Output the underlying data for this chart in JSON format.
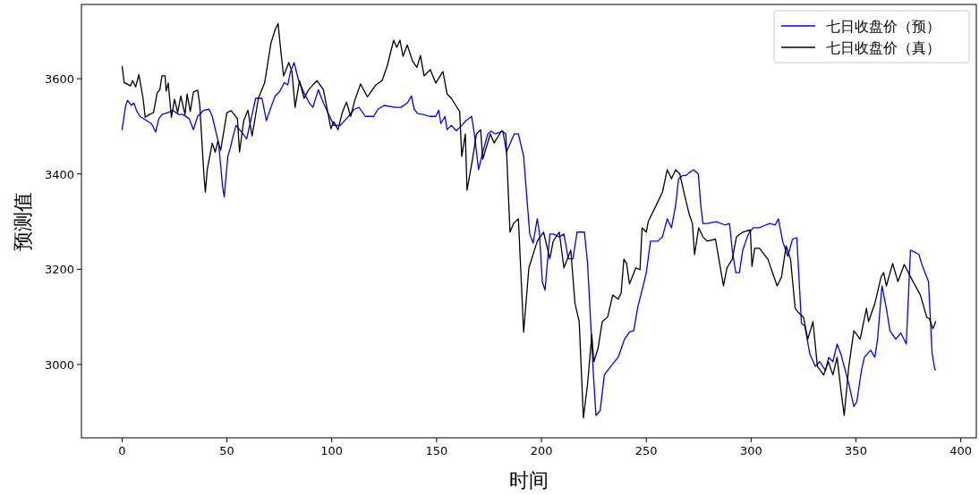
{
  "chart_data": {
    "type": "line",
    "xlabel": "时间",
    "ylabel": "预测值",
    "xlim": [
      -19.4,
      407.4
    ],
    "ylim": [
      2846,
      3756
    ],
    "xticks": [
      0,
      50,
      100,
      150,
      200,
      250,
      300,
      350,
      400
    ],
    "yticks": [
      3000,
      3200,
      3400,
      3600
    ],
    "grid": false,
    "legend": "top right",
    "series": [
      {
        "name": "七日收盘价（预）",
        "color": "#0000ff",
        "x": [
          0,
          1.7,
          2.6,
          4.3,
          5.6,
          7,
          8.5,
          11,
          14,
          16,
          17.5,
          19,
          22,
          24,
          27,
          29,
          32,
          34,
          36,
          39,
          41.5,
          43,
          46,
          48,
          48.7,
          50.4,
          51.7,
          52.6,
          54.3,
          57,
          59.4,
          63.7,
          66.7,
          68.8,
          71,
          73,
          75,
          77.4,
          79,
          80.3,
          82,
          84.2,
          86.8,
          89.3,
          91,
          93.6,
          96,
          101,
          104,
          108,
          110.7,
          113,
          116,
          120,
          122,
          125,
          130,
          133,
          136,
          138,
          139.3,
          141,
          143.6,
          146.6,
          149.6,
          151,
          152,
          154,
          155,
          157,
          159.4,
          162,
          164,
          166.7,
          168,
          170,
          172,
          174.4,
          176,
          178,
          181.6,
          183.3,
          187,
          189,
          191.5,
          194.4,
          196,
          198,
          199,
          200.4,
          201.7,
          204,
          205.6,
          208.5,
          210.7,
          212.8,
          215,
          217,
          220.5,
          222,
          224.8,
          226,
          228,
          230,
          233,
          236.6,
          239.6,
          242,
          244,
          246,
          248,
          250,
          252,
          255.5,
          257.7,
          260,
          262,
          264,
          265.4,
          267.5,
          269,
          270.5,
          272.6,
          274.8,
          276,
          277,
          279,
          283.3,
          287.6,
          289.7,
          291,
          292.7,
          294.4,
          296,
          298.7,
          301,
          304,
          307,
          309,
          311.5,
          313,
          315,
          317.5,
          319.7,
          321.8,
          324,
          325.6,
          328,
          330.6,
          332.7,
          335.5,
          337,
          339,
          341,
          343,
          346.6,
          349,
          350.4,
          352.6,
          354,
          357,
          359,
          360.3,
          362.4,
          364.5,
          366.2,
          369,
          371.4,
          374,
          376,
          378,
          380,
          381.6,
          384.6,
          386.3,
          387.6,
          388
        ],
        "values": [
          3493,
          3544,
          3555,
          3544,
          3549,
          3532,
          3521,
          3514,
          3506,
          3488,
          3516,
          3525,
          3529,
          3534,
          3525,
          3525,
          3516,
          3493,
          3521,
          3534,
          3536,
          3521,
          3465,
          3371,
          3352,
          3437,
          3456,
          3474,
          3502,
          3488,
          3474,
          3559,
          3559,
          3512,
          3540,
          3564,
          3572,
          3592,
          3587,
          3615,
          3634,
          3596,
          3570,
          3549,
          3540,
          3577,
          3549,
          3502,
          3502,
          3521,
          3536,
          3540,
          3521,
          3521,
          3536,
          3544,
          3540,
          3540,
          3549,
          3564,
          3536,
          3527,
          3525,
          3521,
          3521,
          3534,
          3506,
          3521,
          3493,
          3502,
          3491,
          3502,
          3512,
          3521,
          3484,
          3409,
          3446,
          3484,
          3490,
          3484,
          3490,
          3446,
          3484,
          3484,
          3437,
          3274,
          3255,
          3306,
          3278,
          3174,
          3156,
          3274,
          3274,
          3268,
          3274,
          3222,
          3222,
          3278,
          3278,
          3212,
          2978,
          2893,
          2903,
          2978,
          2996,
          3015,
          3053,
          3068,
          3071,
          3122,
          3156,
          3193,
          3259,
          3259,
          3268,
          3306,
          3287,
          3334,
          3390,
          3397,
          3397,
          3403,
          3409,
          3400,
          3334,
          3296,
          3296,
          3300,
          3293,
          3296,
          3240,
          3193,
          3193,
          3240,
          3274,
          3287,
          3287,
          3293,
          3296,
          3293,
          3306,
          3259,
          3227,
          3263,
          3266,
          3086,
          3081,
          3022,
          2996,
          3006,
          2987,
          3015,
          3006,
          3043,
          3019,
          2959,
          2912,
          2922,
          2987,
          3015,
          3030,
          3015,
          3053,
          3165,
          3118,
          3071,
          3053,
          3066,
          3043,
          3240,
          3236,
          3231,
          3208,
          3174,
          3024,
          2990,
          2989
        ]
      },
      {
        "name": "七日收盘价（真）",
        "color": "#000000",
        "x": [
          0,
          1,
          4,
          5,
          6.5,
          8,
          10,
          11,
          13,
          15,
          16.7,
          18,
          19,
          20.5,
          21,
          22,
          23.5,
          25,
          26.5,
          28,
          30,
          31,
          32.5,
          34,
          36,
          37,
          39,
          39.7,
          40.6,
          43,
          44.4,
          45.7,
          47,
          50,
          52,
          55,
          56,
          58,
          60,
          62,
          65,
          68,
          71,
          73,
          74.4,
          75.6,
          77,
          79.5,
          81,
          82.5,
          84.6,
          86.8,
          89,
          91,
          93,
          96,
          99.6,
          100.9,
          103,
          105,
          107,
          109,
          111,
          113.7,
          117,
          121,
          124,
          126.5,
          129.5,
          131,
          132.5,
          134,
          136,
          138.5,
          140.6,
          142.3,
          144,
          147,
          149.6,
          153,
          155,
          157,
          161,
          162,
          163.7,
          164.5,
          167,
          169,
          171,
          172,
          175.6,
          177.4,
          181,
          183,
          185,
          186.7,
          189,
          191.5,
          194,
          198,
          201,
          204,
          205.6,
          208.5,
          210.7,
          214,
          216,
          218,
          220,
          222,
          224,
          225,
          227,
          229,
          231.6,
          234,
          236.6,
          238,
          239.3,
          240.6,
          242,
          245,
          247,
          248,
          250,
          251,
          254.7,
          257.7,
          260,
          262,
          264,
          266,
          268.4,
          270.5,
          272,
          273,
          275,
          277,
          279,
          283,
          286.8,
          288.5,
          291,
          293,
          296,
          299.6,
          300.4,
          301.7,
          304,
          308,
          312.4,
          314.5,
          316.7,
          318.8,
          321,
          322.6,
          325,
          327,
          329.5,
          331.6,
          334.6,
          336.8,
          339,
          341,
          343,
          344.4,
          346.6,
          349,
          352,
          355,
          356,
          359,
          362,
          363.2,
          364.5,
          367.5,
          370,
          373,
          377,
          380.7,
          383.8,
          385,
          386.7,
          388
        ],
        "values": [
          3626,
          3592,
          3585,
          3596,
          3583,
          3609,
          3559,
          3519,
          3525,
          3529,
          3570,
          3577,
          3606,
          3606,
          3574,
          3591,
          3519,
          3557,
          3529,
          3564,
          3525,
          3568,
          3531,
          3572,
          3576,
          3547,
          3399,
          3362,
          3409,
          3465,
          3446,
          3469,
          3450,
          3529,
          3533,
          3516,
          3446,
          3512,
          3534,
          3480,
          3559,
          3592,
          3675,
          3703,
          3716,
          3662,
          3606,
          3634,
          3615,
          3540,
          3596,
          3559,
          3577,
          3587,
          3596,
          3577,
          3495,
          3510,
          3493,
          3529,
          3551,
          3521,
          3555,
          3589,
          3562,
          3587,
          3596,
          3628,
          3681,
          3666,
          3681,
          3647,
          3671,
          3637,
          3624,
          3649,
          3606,
          3619,
          3591,
          3615,
          3568,
          3559,
          3531,
          3437,
          3484,
          3366,
          3428,
          3484,
          3493,
          3431,
          3484,
          3465,
          3491,
          3484,
          3278,
          3296,
          3306,
          3068,
          3203,
          3259,
          3278,
          3222,
          3259,
          3278,
          3203,
          3240,
          3128,
          3090,
          2888,
          2959,
          3062,
          3006,
          3034,
          3090,
          3100,
          3146,
          3137,
          3150,
          3221,
          3212,
          3169,
          3203,
          3199,
          3287,
          3278,
          3301,
          3334,
          3362,
          3409,
          3390,
          3409,
          3400,
          3353,
          3315,
          3296,
          3231,
          3287,
          3268,
          3259,
          3263,
          3165,
          3203,
          3221,
          3268,
          3278,
          3283,
          3206,
          3244,
          3244,
          3221,
          3165,
          3184,
          3249,
          3221,
          3118,
          3109,
          3099,
          3053,
          3090,
          2996,
          2978,
          3006,
          2978,
          3015,
          2940,
          2893,
          2996,
          3071,
          3053,
          3118,
          3090,
          3128,
          3184,
          3193,
          3165,
          3212,
          3174,
          3210,
          3176,
          3146,
          3099,
          3096,
          3075,
          3090
        ]
      }
    ]
  }
}
